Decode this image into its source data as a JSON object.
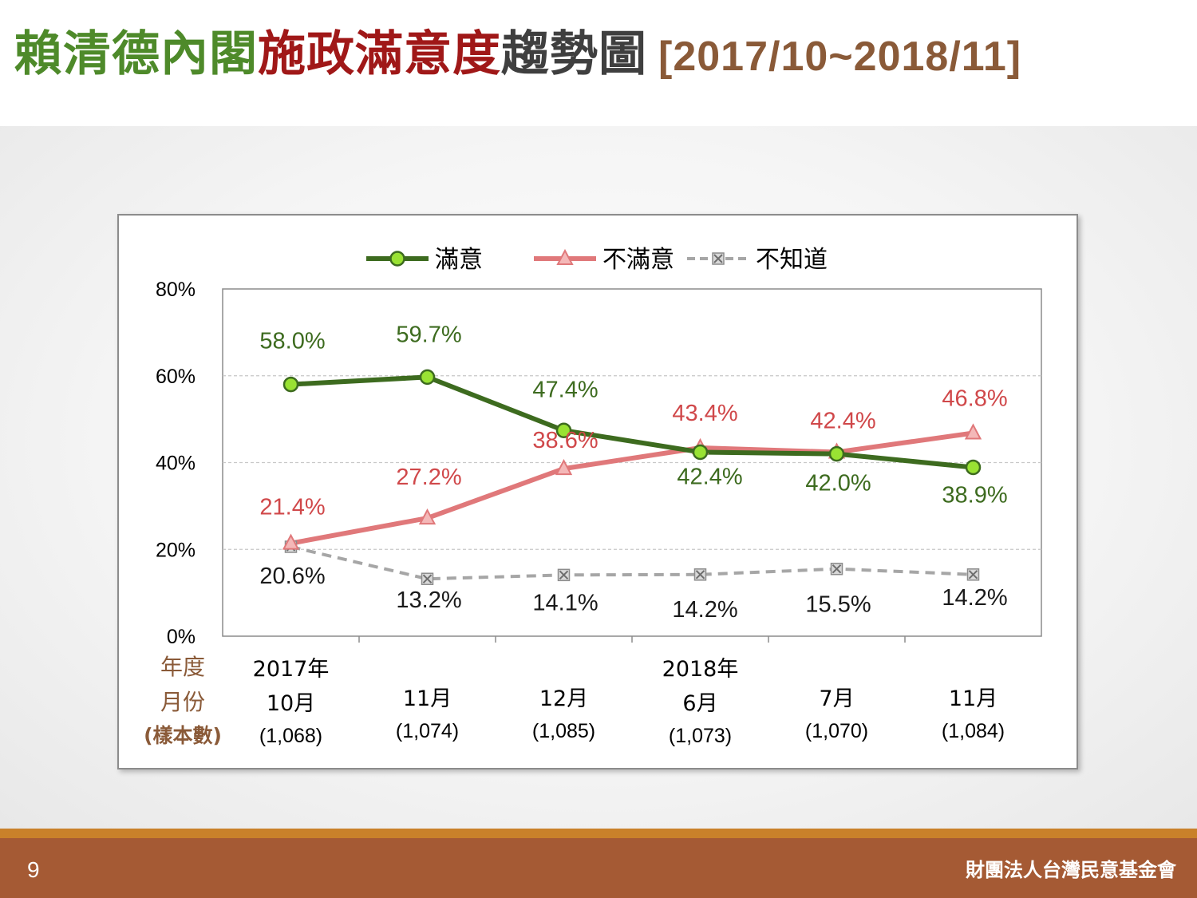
{
  "title": {
    "part1": "賴清德內閣",
    "part2": "施政滿意度",
    "part3": "趨勢圖",
    "range": "[2017/10~2018/11]"
  },
  "footer": {
    "page_number": "9",
    "organization": "財團法人台灣民意基金會"
  },
  "chart_data": {
    "type": "line",
    "categories": [
      {
        "year": "2017年",
        "month": "10月",
        "sample": "(1,068)"
      },
      {
        "year": "",
        "month": "11月",
        "sample": "(1,074)"
      },
      {
        "year": "",
        "month": "12月",
        "sample": "(1,085)"
      },
      {
        "year": "2018年",
        "month": "6月",
        "sample": "(1,073)"
      },
      {
        "year": "",
        "month": "7月",
        "sample": "(1,070)"
      },
      {
        "year": "",
        "month": "11月",
        "sample": "(1,084)"
      }
    ],
    "row_header": [
      "年度",
      "月份",
      "(樣本數)"
    ],
    "series": [
      {
        "name": "滿意",
        "values": [
          58.0,
          59.7,
          47.4,
          42.4,
          42.0,
          38.9
        ],
        "labels": [
          "58.0%",
          "59.7%",
          "47.4%",
          "42.4%",
          "42.0%",
          "38.9%"
        ],
        "color": "#3d6b1f",
        "marker_color": "#99e233",
        "style": "solid",
        "marker": "circle"
      },
      {
        "name": "不滿意",
        "values": [
          21.4,
          27.2,
          38.6,
          43.4,
          42.4,
          46.8
        ],
        "labels": [
          "21.4%",
          "27.2%",
          "38.6%",
          "43.4%",
          "42.4%",
          "46.8%"
        ],
        "color": "#e0787a",
        "marker_color": "#f4b8b8",
        "style": "solid",
        "marker": "triangle"
      },
      {
        "name": "不知道",
        "values": [
          20.6,
          13.2,
          14.1,
          14.2,
          15.5,
          14.2
        ],
        "labels": [
          "20.6%",
          "13.2%",
          "14.1%",
          "14.2%",
          "15.5%",
          "14.2%"
        ],
        "color": "#a6a6a6",
        "marker_color": "#8c8c8c",
        "style": "dashed",
        "marker": "x-square"
      }
    ],
    "label_colors": {
      "滿意": "#3d6b1f",
      "不滿意": "#d0484a",
      "不知道": "#1a1a1a"
    },
    "y_ticks": [
      "0%",
      "20%",
      "40%",
      "60%",
      "80%"
    ],
    "ylim": [
      0,
      80
    ],
    "grid": "horizontal dashed",
    "legend": "top-center"
  }
}
